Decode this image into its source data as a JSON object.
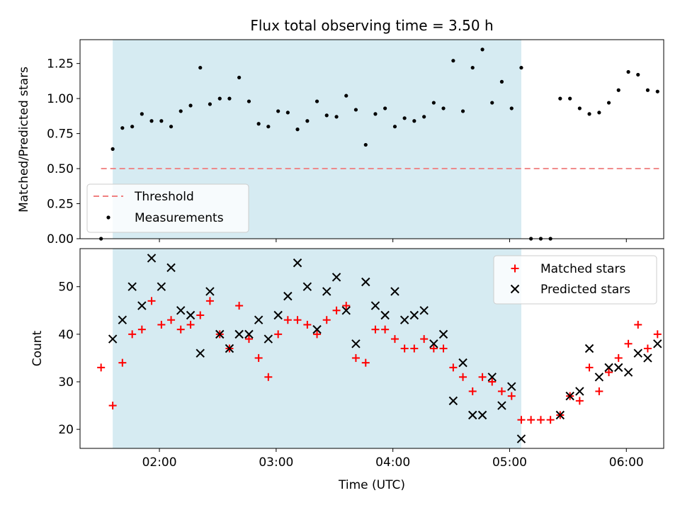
{
  "chart_data": [
    {
      "type": "scatter",
      "title": "Flux total observing time = 3.50 h",
      "xlabel": "",
      "ylabel": "Matched/Predicted stars",
      "ylim": [
        0,
        1.42
      ],
      "yticks": [
        "0.00",
        "0.25",
        "0.50",
        "0.75",
        "1.00",
        "1.25"
      ],
      "shaded_region": {
        "x_start": 1.6,
        "x_end": 5.1
      },
      "threshold": {
        "name": "Threshold",
        "value": 0.5,
        "x_start": 1.5,
        "x_end": 6.28,
        "color": "#f08080"
      },
      "series": [
        {
          "name": "Measurements",
          "color": "#000000",
          "x": [
            1.5,
            1.6,
            1.683,
            1.767,
            1.85,
            1.933,
            2.017,
            2.1,
            2.183,
            2.267,
            2.35,
            2.433,
            2.517,
            2.6,
            2.683,
            2.767,
            2.85,
            2.933,
            3.017,
            3.1,
            3.183,
            3.267,
            3.35,
            3.433,
            3.517,
            3.6,
            3.683,
            3.767,
            3.85,
            3.933,
            4.017,
            4.1,
            4.183,
            4.267,
            4.35,
            4.433,
            4.517,
            4.6,
            4.683,
            4.767,
            4.85,
            4.933,
            5.017,
            5.1,
            5.183,
            5.267,
            5.35,
            5.433,
            5.517,
            5.6,
            5.683,
            5.767,
            5.85,
            5.933,
            6.017,
            6.1,
            6.183,
            6.267
          ],
          "y": [
            0.0,
            0.64,
            0.79,
            0.8,
            0.89,
            0.84,
            0.84,
            0.8,
            0.91,
            0.95,
            1.22,
            0.96,
            1.0,
            1.0,
            1.15,
            0.98,
            0.82,
            0.8,
            0.91,
            0.9,
            0.78,
            0.84,
            0.98,
            0.88,
            0.87,
            1.02,
            0.92,
            0.67,
            0.89,
            0.93,
            0.8,
            0.86,
            0.84,
            0.87,
            0.97,
            0.93,
            1.27,
            0.91,
            1.22,
            1.35,
            0.97,
            1.12,
            0.93,
            1.22,
            0.0,
            0.0,
            0.0,
            1.0,
            1.0,
            0.93,
            0.89,
            0.9,
            0.97,
            1.06,
            1.19,
            1.17,
            1.06,
            1.05
          ]
        }
      ],
      "legend_position": "lower-left"
    },
    {
      "type": "scatter",
      "title": "",
      "xlabel": "Time (UTC)",
      "ylabel": "Count",
      "ylim": [
        16,
        58
      ],
      "yticks": [
        "20",
        "30",
        "40",
        "50"
      ],
      "xlim": [
        1.32,
        6.32
      ],
      "xticks": [
        "02:00",
        "03:00",
        "04:00",
        "05:00",
        "06:00"
      ],
      "shaded_region": {
        "x_start": 1.6,
        "x_end": 5.1
      },
      "series": [
        {
          "name": "Matched stars",
          "color": "#ff0000",
          "marker": "plus",
          "x": [
            1.5,
            1.6,
            1.683,
            1.767,
            1.85,
            1.933,
            2.017,
            2.1,
            2.183,
            2.267,
            2.35,
            2.433,
            2.517,
            2.6,
            2.683,
            2.767,
            2.85,
            2.933,
            3.017,
            3.1,
            3.183,
            3.267,
            3.35,
            3.433,
            3.517,
            3.6,
            3.683,
            3.767,
            3.85,
            3.933,
            4.017,
            4.1,
            4.183,
            4.267,
            4.35,
            4.433,
            4.517,
            4.6,
            4.683,
            4.767,
            4.85,
            4.933,
            5.017,
            5.1,
            5.183,
            5.267,
            5.35,
            5.433,
            5.517,
            5.6,
            5.683,
            5.767,
            5.85,
            5.933,
            6.017,
            6.1,
            6.183,
            6.267
          ],
          "y": [
            33,
            25,
            34,
            40,
            41,
            47,
            42,
            43,
            41,
            42,
            44,
            47,
            40,
            37,
            46,
            39,
            35,
            31,
            40,
            43,
            43,
            42,
            40,
            43,
            45,
            46,
            35,
            34,
            41,
            41,
            39,
            37,
            37,
            39,
            37,
            37,
            33,
            31,
            28,
            31,
            30,
            28,
            27,
            22,
            22,
            22,
            22,
            23,
            27,
            26,
            33,
            28,
            32,
            35,
            38,
            42,
            37,
            40
          ]
        },
        {
          "name": "Predicted stars",
          "color": "#000000",
          "marker": "x",
          "x": [
            1.6,
            1.683,
            1.767,
            1.85,
            1.933,
            2.017,
            2.1,
            2.183,
            2.267,
            2.35,
            2.433,
            2.517,
            2.6,
            2.683,
            2.767,
            2.85,
            2.933,
            3.017,
            3.1,
            3.183,
            3.267,
            3.35,
            3.433,
            3.517,
            3.6,
            3.683,
            3.767,
            3.85,
            3.933,
            4.017,
            4.1,
            4.183,
            4.267,
            4.35,
            4.433,
            4.517,
            4.6,
            4.683,
            4.767,
            4.85,
            4.933,
            5.017,
            5.1,
            5.433,
            5.517,
            5.6,
            5.683,
            5.767,
            5.85,
            5.933,
            6.017,
            6.1,
            6.183,
            6.267
          ],
          "y": [
            39,
            43,
            50,
            46,
            56,
            50,
            54,
            45,
            44,
            36,
            49,
            40,
            37,
            40,
            40,
            43,
            39,
            44,
            48,
            55,
            50,
            41,
            49,
            52,
            45,
            38,
            51,
            46,
            44,
            49,
            43,
            44,
            45,
            38,
            40,
            26,
            34,
            23,
            23,
            31,
            25,
            29,
            18,
            23,
            27,
            28,
            37,
            31,
            33,
            33,
            32,
            36,
            35,
            38
          ]
        }
      ],
      "legend_position": "upper-right"
    }
  ]
}
